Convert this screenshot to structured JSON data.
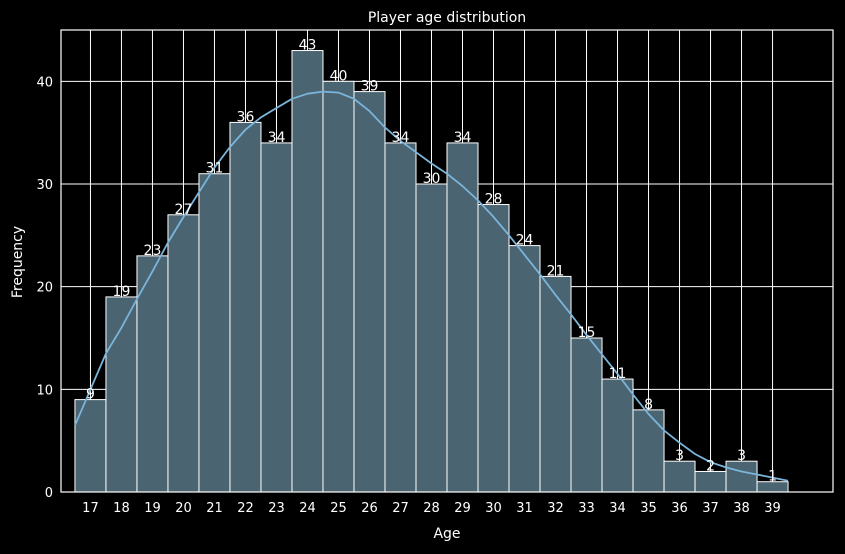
{
  "chart_data": {
    "type": "bar",
    "title": "Player age distribution",
    "xlabel": "Age",
    "ylabel": "Frequency",
    "categories": [
      "17",
      "18",
      "19",
      "20",
      "21",
      "22",
      "23",
      "24",
      "25",
      "26",
      "27",
      "28",
      "29",
      "30",
      "31",
      "32",
      "33",
      "34",
      "35",
      "36",
      "37",
      "38",
      "39"
    ],
    "values": [
      9,
      19,
      23,
      27,
      31,
      36,
      34,
      43,
      40,
      39,
      34,
      30,
      34,
      28,
      24,
      21,
      15,
      11,
      8,
      3,
      2,
      3,
      1
    ],
    "yticks": [
      0,
      10,
      20,
      30,
      40
    ],
    "ylim": [
      0,
      45
    ],
    "grid": true,
    "kde_curve": {
      "x": [
        16.5,
        17,
        17.5,
        18,
        18.5,
        19,
        19.5,
        20,
        20.5,
        21,
        21.5,
        22,
        22.5,
        23,
        23.5,
        24,
        24.5,
        25,
        25.5,
        26,
        26.5,
        27,
        27.5,
        28,
        28.5,
        29,
        29.5,
        30,
        30.5,
        31,
        31.5,
        32,
        32.5,
        33,
        33.5,
        34,
        34.5,
        35,
        35.5,
        36,
        36.5,
        37,
        37.5,
        38,
        38.5,
        39,
        39.5
      ],
      "y": [
        6.5,
        10,
        13.5,
        16,
        18.8,
        21.5,
        24.3,
        26.8,
        29.2,
        31.6,
        33.6,
        35.3,
        36.5,
        37.4,
        38.3,
        38.8,
        39.0,
        38.9,
        38.3,
        37.1,
        35.5,
        34.2,
        33.1,
        32.0,
        31.0,
        29.8,
        28.4,
        26.8,
        25.0,
        23.1,
        21.2,
        19.2,
        17.3,
        15.3,
        13.4,
        11.5,
        9.5,
        7.6,
        6.0,
        4.8,
        3.7,
        2.9,
        2.4,
        2.0,
        1.7,
        1.4,
        1.1
      ]
    },
    "colors": {
      "bar_fill": "#4b6472",
      "bar_edge": "#ffffff",
      "kde_line": "#7ab5dc",
      "grid": "#ffffff",
      "background": "#000000",
      "text": "#ffffff"
    }
  }
}
